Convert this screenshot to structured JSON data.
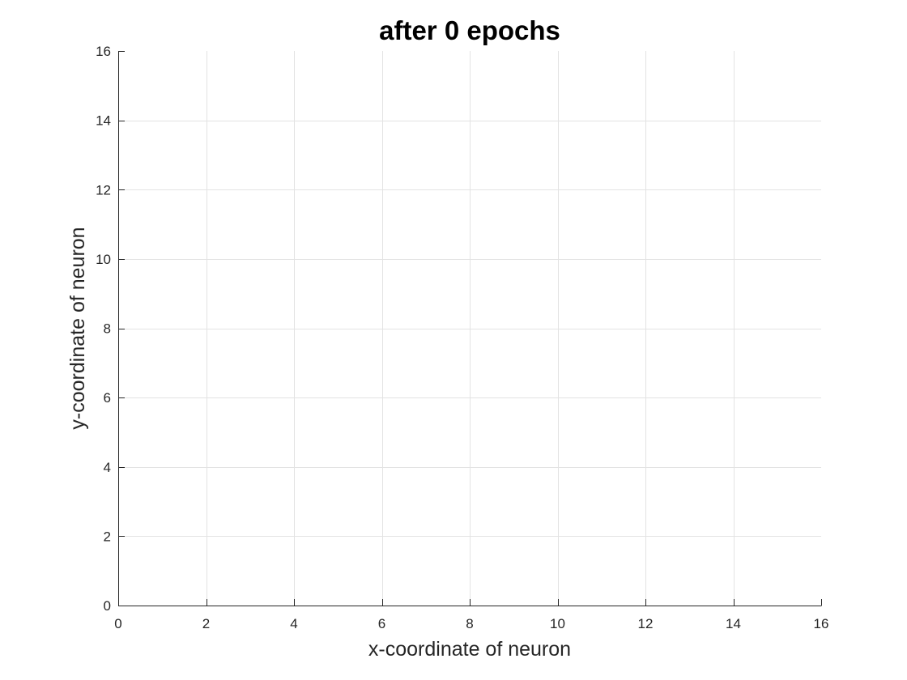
{
  "chart_data": {
    "type": "scatter",
    "title": "after 0 epochs",
    "xlabel": "x-coordinate of neuron",
    "ylabel": "y-coordinate of neuron",
    "xlim": [
      0,
      16
    ],
    "ylim": [
      0,
      16
    ],
    "xticks": [
      0,
      2,
      4,
      6,
      8,
      10,
      12,
      14,
      16
    ],
    "yticks": [
      0,
      2,
      4,
      6,
      8,
      10,
      12,
      14,
      16
    ],
    "grid": true,
    "series": [
      {
        "x": [],
        "y": []
      }
    ]
  }
}
